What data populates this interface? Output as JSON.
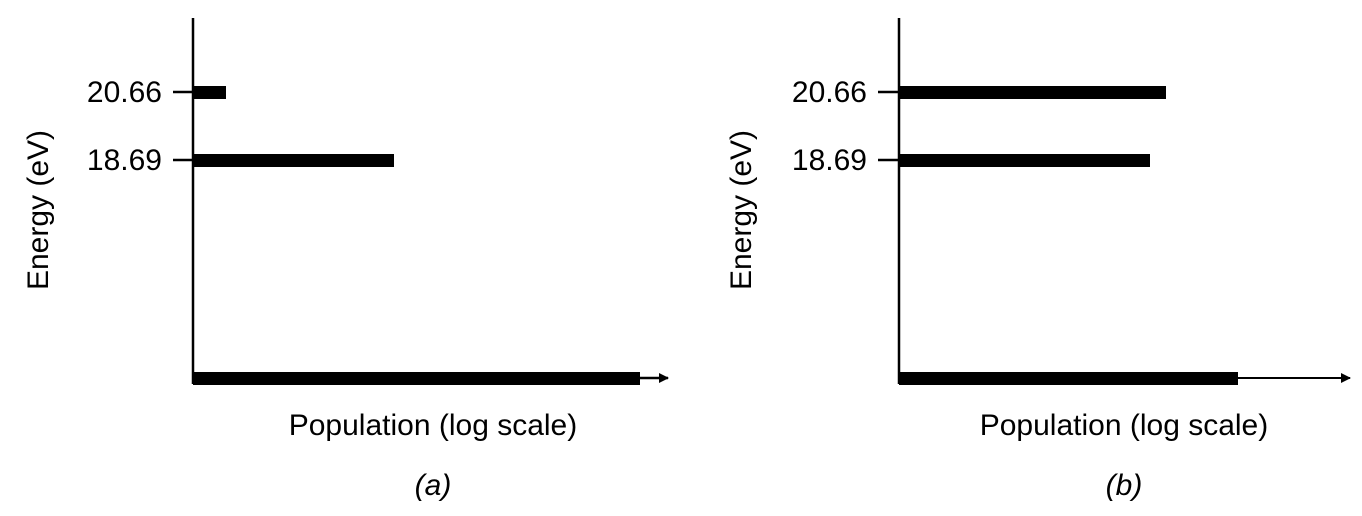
{
  "panels": [
    {
      "y_axis_label": "Energy (eV)",
      "y_ticks": [
        "20.66",
        "18.69"
      ],
      "x_axis_label": "Population (log scale)",
      "caption": "(a)"
    },
    {
      "y_axis_label": "Energy (eV)",
      "y_ticks": [
        "20.66",
        "18.69"
      ],
      "x_axis_label": "Population (log scale)",
      "caption": "(b)"
    }
  ]
}
